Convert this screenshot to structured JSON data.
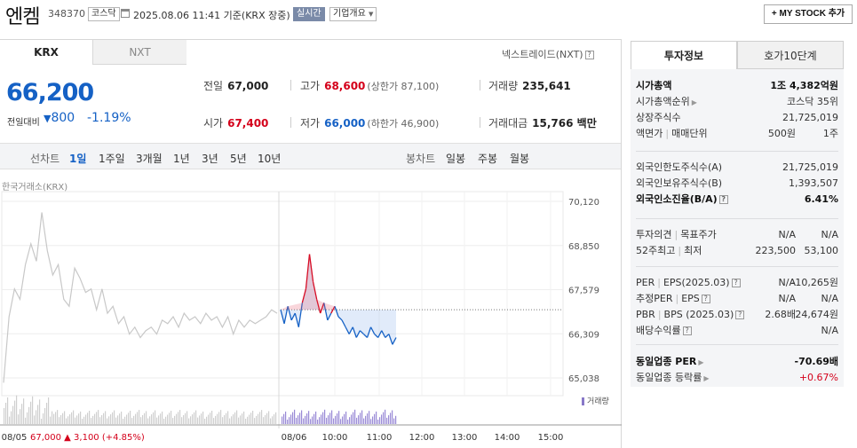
{
  "header": {
    "name": "엔켐",
    "code": "348370",
    "market": "코스닥",
    "timestamp": "2025.08.06 11:41 기준(KRX 장중)",
    "realtime": "실시간",
    "company_overview": "기업개요",
    "mystock": "+ MY STOCK 추가"
  },
  "tabs": {
    "krx": "KRX",
    "nxt": "NXT",
    "nxt_trade": "넥스트레이드(NXT)"
  },
  "price": {
    "current": "66,200",
    "change_label": "전일대비",
    "change_arrow": "▼",
    "change_amount": "800",
    "change_percent": "-1.19%"
  },
  "stats": {
    "prev_label": "전일",
    "prev": "67,000",
    "high_label": "고가",
    "high": "68,600",
    "upper_limit": "(상한가 87,100)",
    "volume_label": "거래량",
    "volume": "235,641",
    "open_label": "시가",
    "open": "67,400",
    "low_label": "저가",
    "low": "66,000",
    "lower_limit": "(하한가 46,900)",
    "amount_label": "거래대금",
    "amount": "15,766 백만"
  },
  "range_bar": {
    "label": "선차트",
    "ranges": [
      "1일",
      "1주일",
      "3개월",
      "1년",
      "3년",
      "5년",
      "10년"
    ],
    "active": "1일",
    "candle_label": "봉차트",
    "candles": [
      "일봉",
      "주봉",
      "월봉"
    ]
  },
  "chart_source": "한국거래소(KRX)",
  "chart_data": {
    "type": "line",
    "y_ticks": [
      "70,120",
      "68,850",
      "67,579",
      "66,309",
      "65,038"
    ],
    "ylim": [
      65038,
      70120
    ],
    "x_ticks": [
      "08/05",
      "08/06",
      "10:00",
      "11:00",
      "12:00",
      "13:00",
      "14:00",
      "15:00"
    ],
    "prev_close": 67000,
    "prev_session_footer": {
      "date": "08/05",
      "close": "67,000",
      "arrow": "▲",
      "change": "3,100",
      "percent": "(+4.85%)"
    },
    "volume_label": "거래량",
    "series": [
      {
        "session": "08/05",
        "color": "#c8c8c8",
        "values": [
          64900,
          66800,
          67600,
          67300,
          68300,
          68900,
          68400,
          69800,
          68700,
          68000,
          68300,
          67300,
          67100,
          68200,
          67900,
          67500,
          67600,
          67000,
          67600,
          66900,
          67100,
          66600,
          66800,
          66300,
          66500,
          66200,
          66400,
          66500,
          66300,
          66700,
          66600,
          66800,
          66500,
          66900,
          66700,
          66800,
          66600,
          66900,
          66700,
          66800,
          66500,
          66800,
          66300,
          66700,
          66500,
          66700,
          66600,
          66700,
          66800,
          67000,
          66900
        ]
      },
      {
        "session": "08/06",
        "color_up": "#d4001a",
        "color_down": "#1561c5",
        "values": [
          67000,
          66600,
          67100,
          66700,
          66900,
          66500,
          67200,
          67600,
          68600,
          67800,
          67300,
          66900,
          67200,
          66700,
          66900,
          67100,
          66800,
          66700,
          66500,
          66300,
          66500,
          66200,
          66400,
          66300,
          66200,
          66500,
          66300,
          66200,
          66400,
          66200,
          66300,
          66000,
          66200
        ]
      }
    ]
  },
  "right": {
    "tab_invest": "투자정보",
    "tab_quote": "호가10단계",
    "rows": [
      {
        "label": "시가총액",
        "value": "1조 4,382억원",
        "bold": true
      },
      {
        "label": "시가총액순위",
        "value": "코스닥 35위",
        "arrow": true
      },
      {
        "label": "상장주식수",
        "value": "21,725,019"
      },
      {
        "label": "액면가",
        "label2": "매매단위",
        "value": "500원",
        "value2": "1주"
      },
      {
        "label": "외국인한도주식수(A)",
        "value": "21,725,019"
      },
      {
        "label": "외국인보유주식수(B)",
        "value": "1,393,507"
      },
      {
        "label": "외국인소진율(B/A)",
        "value": "6.41%",
        "bold": true,
        "q": true
      },
      {
        "label": "투자의견",
        "label2": "목표주가",
        "value": "N/A",
        "value2": "N/A"
      },
      {
        "label": "52주최고",
        "label2": "최저",
        "value": "223,500",
        "value2": "53,100"
      },
      {
        "label": "PER",
        "label2": "EPS(2025.03)",
        "value": "N/A",
        "value2": "-10,265원",
        "q": true
      },
      {
        "label": "추정PER",
        "label2": "EPS",
        "value": "N/A",
        "value2": "N/A",
        "q": true
      },
      {
        "label": "PBR",
        "label2": "BPS (2025.03)",
        "value": "2.68배",
        "value2": "24,674원",
        "q": true
      },
      {
        "label": "배당수익률",
        "value": "N/A",
        "q": true
      },
      {
        "label": "동일업종 PER",
        "value": "-70.69배",
        "bold": true,
        "arrow": true
      },
      {
        "label": "동일업종 등락률",
        "value": "+0.67%",
        "arrow": true,
        "red": true
      }
    ]
  }
}
